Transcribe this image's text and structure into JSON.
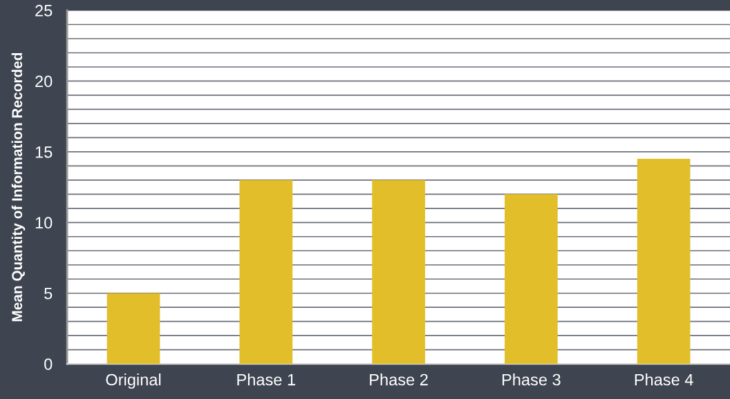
{
  "chart_data": {
    "type": "bar",
    "ylabel": "Mean Quantity of Information Recorded",
    "categories": [
      "Original",
      "Phase 1",
      "Phase 2",
      "Phase 3",
      "Phase 4"
    ],
    "values": [
      5,
      13,
      13,
      12,
      14.5
    ],
    "color": "#e2bf2a",
    "ylim": [
      0,
      25
    ],
    "yticks": [
      0,
      {
        "value": 1,
        "label": null
      },
      {
        "value": 2,
        "label": null
      },
      {
        "value": 3,
        "label": null
      },
      {
        "value": 4,
        "label": null
      },
      5,
      {
        "value": 6,
        "label": null
      },
      {
        "value": 7,
        "label": null
      },
      {
        "value": 8,
        "label": null
      },
      {
        "value": 9,
        "label": null
      },
      10,
      {
        "value": 11,
        "label": null
      },
      {
        "value": 12,
        "label": null
      },
      {
        "value": 13,
        "label": null
      },
      {
        "value": 14,
        "label": null
      },
      15,
      {
        "value": 16,
        "label": null
      },
      {
        "value": 17,
        "label": null
      },
      {
        "value": 18,
        "label": null
      },
      {
        "value": 19,
        "label": null
      },
      20,
      {
        "value": 21,
        "label": null
      },
      {
        "value": 22,
        "label": null
      },
      {
        "value": 23,
        "label": null
      },
      {
        "value": 24,
        "label": null
      },
      25
    ],
    "grid": "y"
  }
}
